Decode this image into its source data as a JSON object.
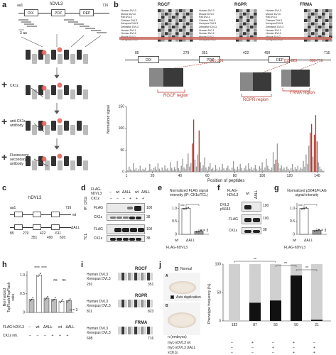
{
  "panel_letters": [
    "a",
    "b",
    "c",
    "d",
    "e",
    "f",
    "g",
    "h",
    "i",
    "j"
  ],
  "panel_a": {
    "protein_name": "hDVL3",
    "pos_start": "aa1",
    "pos_end": "716",
    "domains": [
      "DIX",
      "PDZ",
      "DEP"
    ],
    "peptide_label": "3 aa",
    "step_labels": [
      "CK1ε",
      "anti-CK1ε\nantibody",
      "Fluorescent\nsecondary\nantibody"
    ],
    "arrow_step": "1"
  },
  "panel_b": {
    "motif_titles": [
      "RGCF",
      "RGPR",
      "FRMA"
    ],
    "species_labels": [
      "Human DVL3",
      "Mouse DVL3",
      "Rat DVL3",
      "Chicken DVL3",
      "Xenopus DVL3",
      "Zebrafish DVL3",
      "Human DVL1",
      "Human DVL2",
      "Mouse DVL2",
      "Xenopus DVL2"
    ],
    "domain_labels": [
      "DIX",
      "PDZ",
      "DEP"
    ],
    "region_labels": [
      "RGCF region",
      "RGPR region",
      "FRMA region"
    ],
    "ranges": [
      "291-351",
      "811-823",
      "698-716"
    ],
    "pos_ticks": [
      "85",
      "279",
      "351",
      "422",
      "490",
      "716"
    ],
    "y_label": "Normalized signal",
    "x_label": "Position of peptides"
  },
  "panel_c": {
    "protein": "hDVL3",
    "wt": "wt",
    "mutant": "ΔALL",
    "pos": [
      "aa1",
      "716",
      "85",
      "279",
      "351",
      "422",
      "490",
      "611",
      "620"
    ]
  },
  "panel_d": {
    "row_top": [
      "FLAG-",
      "hDVL3"
    ],
    "row_ck1": "CK1ε",
    "col_labels": [
      "–",
      "wt",
      "ΔALL",
      "–",
      "wt",
      "ΔALL"
    ],
    "ip_label": "IP: CK1ε",
    "tcl_label": "TCL",
    "blot_labels": [
      "FLAG",
      "CK1ε",
      "FLAG",
      "CK1ε"
    ],
    "mw": [
      "100",
      "38",
      "100",
      "38"
    ]
  },
  "panel_e": {
    "title": "Normalized FLAG signal intensity (IP: CK1ε/TCL)",
    "y_ticks": [
      "1.0",
      "0.5",
      "0"
    ],
    "x_labels": [
      "wt",
      "ΔALL"
    ],
    "x_title": "FLAG-hDVL3",
    "sig": "***",
    "n": "n = 3"
  },
  "panel_f": {
    "row_top": [
      "FLAG-",
      "hDVL3"
    ],
    "col_labels": [
      "wt",
      "ΔALL"
    ],
    "blot_labels": [
      "DVL3 pS643",
      "FLAG",
      "CK1ε"
    ],
    "mw": [
      "100",
      "100",
      "38"
    ]
  },
  "panel_g": {
    "title": "Normalized pS643/FLAG signal intensity",
    "y_ticks": [
      "1.0",
      "0.5",
      "0"
    ],
    "x_labels": [
      "wt",
      "ΔALL"
    ],
    "x_title": "FLAG-hDVL3",
    "sig": "***",
    "n": "n = 3"
  },
  "panel_h": {
    "y_label": "Normalized\nTopFlash/FopFlash\nratio",
    "y_ticks": [
      "1.0",
      "0.5",
      "0"
    ],
    "row_labels": [
      "FLAG-hDVL3",
      "CK1ε inh."
    ],
    "col_labels": [
      "–",
      "wt",
      "ΔALL",
      "–",
      "wt",
      "ΔALL"
    ],
    "inh": [
      "–",
      "–",
      "–",
      "+",
      "+",
      "+"
    ],
    "sig": [
      "****",
      "****",
      "ns",
      "ns"
    ],
    "n": "n = 3"
  },
  "panel_i": {
    "motifs": [
      "RGCF",
      "RGPR",
      "FRMA"
    ],
    "species": [
      "Human DVL3",
      "Xenopus DVL3"
    ],
    "positions": [
      "291",
      "351",
      "811",
      "823",
      "698",
      "716"
    ]
  },
  "panel_j": {
    "legend": [
      "Normal",
      "Axis duplication"
    ],
    "embryo_labels": [
      "A",
      "B"
    ],
    "y_label": "Phenotype frequency (%)",
    "y_ticks": [
      "100",
      "50",
      "0"
    ],
    "x_labels": [
      "182",
      "87",
      "56",
      "50",
      "21"
    ],
    "n_title": "n (embryos)",
    "rows": [
      "myc-xDVL3 wt",
      "myc-xDVL3 ΔALL",
      "xCK1ε"
    ],
    "matrix": [
      [
        "–",
        "+",
        "–",
        "+",
        "–"
      ],
      [
        "–",
        "–",
        "+",
        "–",
        "+"
      ],
      [
        "–",
        "–",
        "–",
        "+",
        "+"
      ]
    ],
    "sig": [
      "**",
      "**",
      "**"
    ]
  },
  "chart_data": [
    {
      "panel": "b",
      "type": "bar",
      "title": "",
      "xlabel": "Position of peptides",
      "ylabel": "Normalized signal",
      "xlim": [
        1,
        145
      ],
      "ylim": [
        0,
        150
      ],
      "x_ticks": [
        1,
        20,
        40,
        60,
        80,
        100,
        120,
        140
      ],
      "y_ticks": [
        0,
        50,
        100,
        150
      ],
      "series": [
        {
          "values": [
            8,
            4,
            12,
            6,
            3,
            20,
            5,
            9,
            2,
            6,
            14,
            3,
            7,
            5,
            10,
            2,
            4,
            18,
            6,
            3,
            9,
            12,
            5,
            20,
            7,
            3,
            10,
            4,
            15,
            6,
            8,
            3,
            22,
            9,
            5,
            11,
            6,
            25,
            8,
            4,
            14,
            30,
            10,
            6,
            18,
            42,
            12,
            20,
            65,
            120,
            28,
            12,
            40,
            95,
            22,
            8,
            15,
            33,
            10,
            5,
            12,
            20,
            6,
            9,
            4,
            16,
            7,
            3,
            11,
            5,
            18,
            8,
            4,
            9,
            14,
            6,
            3,
            10,
            25,
            7,
            4,
            12,
            6,
            18,
            9,
            3,
            8,
            14,
            5,
            20,
            7,
            11,
            4,
            9,
            16,
            6,
            3,
            13,
            8,
            22,
            5,
            10,
            30,
            14,
            7,
            4,
            10,
            45,
            18,
            28,
            65,
            20,
            8,
            15,
            6,
            10,
            4,
            12,
            7,
            3,
            9,
            18,
            5,
            11,
            6,
            14,
            4,
            10,
            7,
            25,
            12,
            40,
            18,
            60,
            90,
            110,
            35,
            85,
            130,
            70,
            22,
            12,
            6,
            3,
            2
          ],
          "highlighted": [
            48,
            49,
            53,
            109,
            134,
            135,
            137,
            138,
            139
          ]
        }
      ]
    },
    {
      "panel": "e",
      "type": "bar",
      "categories": [
        "wt",
        "ΔALL"
      ],
      "values": [
        1.0,
        0.12
      ],
      "ylim": [
        0,
        1.2
      ]
    },
    {
      "panel": "g",
      "type": "bar",
      "categories": [
        "wt",
        "ΔALL"
      ],
      "values": [
        1.0,
        0.15
      ],
      "ylim": [
        0,
        1.2
      ]
    },
    {
      "panel": "h",
      "type": "bar",
      "categories": [
        "–",
        "wt",
        "ΔALL",
        "–",
        "wt",
        "ΔALL"
      ],
      "values": [
        0.35,
        1.0,
        0.38,
        0.35,
        0.3,
        0.32
      ],
      "ylim": [
        0,
        1.1
      ]
    },
    {
      "panel": "j",
      "type": "bar",
      "categories": [
        "182",
        "87",
        "56",
        "50",
        "21"
      ],
      "series": [
        {
          "name": "Normal",
          "values": [
            100,
            68,
            64,
            20,
            98
          ]
        },
        {
          "name": "Axis duplication",
          "values": [
            0,
            32,
            36,
            80,
            2
          ]
        }
      ],
      "ylim": [
        0,
        100
      ]
    }
  ],
  "colors": {
    "highlight": "#b5382d",
    "grey": "#9a9a9a",
    "light": "#dcdcdc",
    "dark": "#111111"
  }
}
